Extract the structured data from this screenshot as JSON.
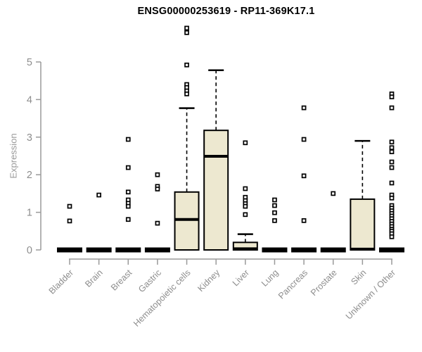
{
  "chart_data": {
    "type": "boxplot",
    "title": "ENSG00000253619 - RP11-369K17.1",
    "ylabel": "Expression",
    "xlabel": "",
    "ylim": [
      0,
      5
    ],
    "yticks": [
      0,
      1,
      2,
      3,
      4,
      5
    ],
    "grid": false,
    "legend": null,
    "colors": {
      "box_fill": "#ede8d0",
      "box_stroke": "#000000",
      "median": "#000000",
      "outlier": "#000000",
      "axis": "#9a9a9a",
      "tick_label": "#8d8d8d"
    },
    "categories": [
      "Bladder",
      "Brain",
      "Breast",
      "Gastric",
      "Hematopoietic cells",
      "Kidney",
      "Liver",
      "Lung",
      "Pancreas",
      "Prostate",
      "Skin",
      "Unknown / Other"
    ],
    "boxes": [
      {
        "category": "Bladder",
        "q1": 0,
        "median": 0,
        "q3": 0,
        "whisker_low": 0,
        "whisker_high": 0,
        "outliers": [
          1.16,
          0.77
        ]
      },
      {
        "category": "Brain",
        "q1": 0,
        "median": 0,
        "q3": 0,
        "whisker_low": 0,
        "whisker_high": 0,
        "outliers": [
          1.46
        ]
      },
      {
        "category": "Breast",
        "q1": 0,
        "median": 0,
        "q3": 0,
        "whisker_low": 0,
        "whisker_high": 0,
        "outliers": [
          2.94,
          2.19,
          1.54,
          1.33,
          1.24,
          1.16,
          0.81
        ]
      },
      {
        "category": "Gastric",
        "q1": 0,
        "median": 0,
        "q3": 0,
        "whisker_low": 0,
        "whisker_high": 0,
        "outliers": [
          2.0,
          1.69,
          1.62,
          0.71
        ]
      },
      {
        "category": "Hematopoietic cells",
        "q1": 0,
        "median": 0.81,
        "q3": 1.54,
        "whisker_low": 0,
        "whisker_high": 3.77,
        "outliers": [
          5.9,
          5.78,
          4.92,
          4.4,
          4.32,
          4.23,
          4.15
        ]
      },
      {
        "category": "Kidney",
        "q1": 0,
        "median": 2.49,
        "q3": 3.18,
        "whisker_low": 0,
        "whisker_high": 4.78,
        "outliers": []
      },
      {
        "category": "Liver",
        "q1": 0,
        "median": 0.03,
        "q3": 0.2,
        "whisker_low": 0,
        "whisker_high": 0.42,
        "outliers": [
          2.85,
          1.63,
          1.4,
          1.31,
          1.23,
          1.16,
          0.94
        ]
      },
      {
        "category": "Lung",
        "q1": 0,
        "median": 0,
        "q3": 0,
        "whisker_low": 0,
        "whisker_high": 0,
        "outliers": [
          1.33,
          1.18,
          0.99,
          0.78
        ]
      },
      {
        "category": "Pancreas",
        "q1": 0,
        "median": 0,
        "q3": 0,
        "whisker_low": 0,
        "whisker_high": 0,
        "outliers": [
          3.78,
          2.94,
          1.97,
          0.78
        ]
      },
      {
        "category": "Prostate",
        "q1": 0,
        "median": 0,
        "q3": 0,
        "whisker_low": 0,
        "whisker_high": 0,
        "outliers": [
          1.5
        ]
      },
      {
        "category": "Skin",
        "q1": 0,
        "median": 0.02,
        "q3": 1.35,
        "whisker_low": 0,
        "whisker_high": 2.9,
        "outliers": []
      },
      {
        "category": "Unknown / Other",
        "q1": 0,
        "median": 0,
        "q3": 0,
        "whisker_low": 0,
        "whisker_high": 0,
        "outliers": [
          4.15,
          4.07,
          3.78,
          2.87,
          2.72,
          2.61,
          2.34,
          2.19,
          1.78,
          1.46,
          1.38,
          1.18,
          1.11,
          1.04,
          0.97,
          0.9,
          0.83,
          0.76,
          0.69,
          0.62,
          0.55,
          0.5,
          0.43,
          0.35
        ]
      }
    ]
  }
}
